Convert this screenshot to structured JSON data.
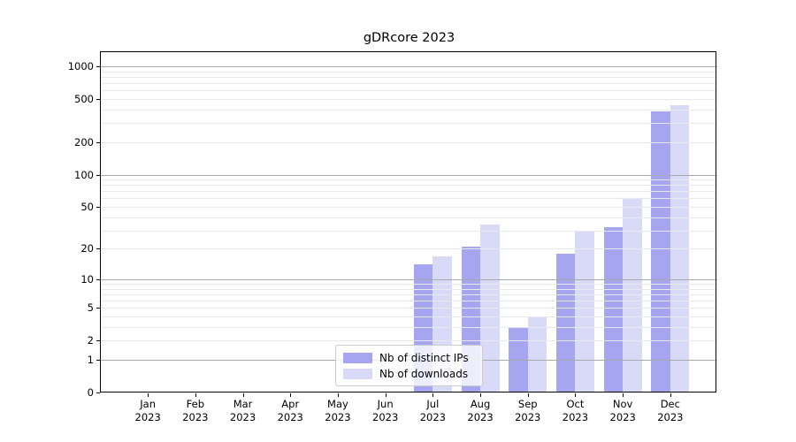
{
  "chart_data": {
    "type": "bar",
    "title": "gDRcore 2023",
    "categories": [
      "Jan 2023",
      "Feb 2023",
      "Mar 2023",
      "Apr 2023",
      "May 2023",
      "Jun 2023",
      "Jul 2023",
      "Aug 2023",
      "Sep 2023",
      "Oct 2023",
      "Nov 2023",
      "Dec 2023"
    ],
    "x_tick_months": [
      "Jan",
      "Feb",
      "Mar",
      "Apr",
      "May",
      "Jun",
      "Jul",
      "Aug",
      "Sep",
      "Oct",
      "Nov",
      "Dec"
    ],
    "x_tick_year": "2023",
    "series": [
      {
        "name": "Nb of distinct IPs",
        "color": "#a5a5f0",
        "values": [
          0,
          0,
          0,
          0,
          0,
          0,
          14,
          21,
          3,
          18,
          32,
          382
        ]
      },
      {
        "name": "Nb of downloads",
        "color": "#d9d9f8",
        "values": [
          0,
          0,
          0,
          0,
          0,
          0,
          17,
          34,
          4,
          29,
          60,
          438
        ]
      }
    ],
    "yscale": "log1p",
    "ylim": [
      0,
      1350
    ],
    "yticks": [
      0,
      1,
      2,
      5,
      10,
      20,
      50,
      100,
      200,
      500,
      1000
    ],
    "grid": true,
    "legend_position": "lower center",
    "colors": {
      "axis": "#000000",
      "major_grid": "#a9a9a9",
      "minor_grid": "#e9e9e9",
      "background": "#ffffff"
    }
  }
}
